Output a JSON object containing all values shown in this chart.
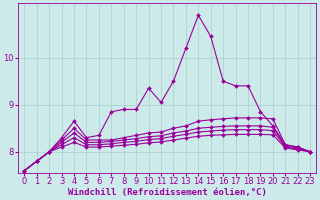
{
  "xlabel": "Windchill (Refroidissement éolien,°C)",
  "x": [
    0,
    1,
    2,
    3,
    4,
    5,
    6,
    7,
    8,
    9,
    10,
    11,
    12,
    13,
    14,
    15,
    16,
    17,
    18,
    19,
    20,
    21,
    22,
    23
  ],
  "series": [
    [
      7.6,
      7.8,
      8.0,
      8.3,
      8.65,
      8.3,
      8.35,
      8.85,
      8.9,
      8.9,
      9.35,
      9.05,
      9.5,
      10.2,
      10.9,
      10.45,
      9.5,
      9.4,
      9.4,
      8.85,
      8.55,
      8.15,
      8.1,
      8.0
    ],
    [
      7.6,
      7.8,
      8.0,
      8.25,
      8.5,
      8.25,
      8.25,
      8.25,
      8.3,
      8.35,
      8.4,
      8.42,
      8.5,
      8.55,
      8.65,
      8.68,
      8.7,
      8.72,
      8.72,
      8.72,
      8.7,
      8.15,
      8.1,
      8.0
    ],
    [
      7.6,
      7.8,
      8.0,
      8.2,
      8.4,
      8.2,
      8.2,
      8.22,
      8.25,
      8.28,
      8.32,
      8.34,
      8.4,
      8.44,
      8.5,
      8.52,
      8.54,
      8.55,
      8.55,
      8.55,
      8.52,
      8.12,
      8.08,
      8.0
    ],
    [
      7.6,
      7.8,
      8.0,
      8.15,
      8.3,
      8.15,
      8.15,
      8.17,
      8.2,
      8.22,
      8.26,
      8.28,
      8.33,
      8.37,
      8.42,
      8.44,
      8.46,
      8.47,
      8.47,
      8.47,
      8.45,
      8.1,
      8.06,
      8.0
    ],
    [
      7.6,
      7.8,
      8.0,
      8.1,
      8.2,
      8.1,
      8.1,
      8.12,
      8.14,
      8.16,
      8.19,
      8.21,
      8.25,
      8.29,
      8.33,
      8.35,
      8.36,
      8.37,
      8.37,
      8.37,
      8.36,
      8.08,
      8.04,
      8.0
    ]
  ],
  "line_color": "#990099",
  "marker": "D",
  "marker_size": 2.0,
  "bg_color": "#cdeaea",
  "grid_color": "#aacccc",
  "ylim": [
    7.55,
    11.15
  ],
  "yticks": [
    8,
    9,
    10
  ],
  "xticks": [
    0,
    1,
    2,
    3,
    4,
    5,
    6,
    7,
    8,
    9,
    10,
    11,
    12,
    13,
    14,
    15,
    16,
    17,
    18,
    19,
    20,
    21,
    22,
    23
  ],
  "xlabel_fontsize": 6.5,
  "tick_fontsize": 6.0,
  "line_width": 0.8,
  "figsize": [
    3.2,
    2.0
  ],
  "dpi": 100
}
